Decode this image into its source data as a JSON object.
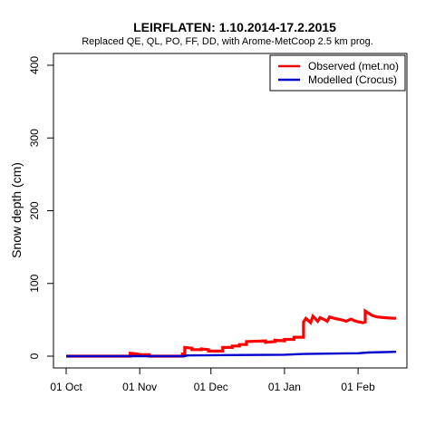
{
  "chart_data": {
    "type": "line",
    "title": "LEIRFLATEN: 1.10.2014-17.2.2015",
    "subtitle": "Replaced QE, QL, PO, FF, DD,  with Arome-MetCoop 2.5 km prog.",
    "xlabel": "",
    "ylabel": "Snow depth (cm)",
    "x_ticks": [
      "01 Oct",
      "01 Nov",
      "01 Dec",
      "01 Jan",
      "01 Feb"
    ],
    "x_tick_days": [
      0,
      31,
      61,
      92,
      123
    ],
    "xlim_days": [
      0,
      139
    ],
    "y_ticks": [
      0,
      100,
      200,
      300,
      400
    ],
    "ylim": [
      0,
      400
    ],
    "grid": false,
    "legend_position": "top-right",
    "series": [
      {
        "name": "Observed (met.no)",
        "color": "#ff0000",
        "points": [
          [
            "2014-10-01",
            0
          ],
          [
            "2014-10-28",
            0
          ],
          [
            "2014-10-28",
            4
          ],
          [
            "2014-10-31",
            3
          ],
          [
            "2014-10-31",
            2
          ],
          [
            "2014-11-05",
            2
          ],
          [
            "2014-11-05",
            0
          ],
          [
            "2014-11-19",
            0
          ],
          [
            "2014-11-19",
            3
          ],
          [
            "2014-11-20",
            3
          ],
          [
            "2014-11-20",
            12
          ],
          [
            "2014-11-23",
            11
          ],
          [
            "2014-11-23",
            9
          ],
          [
            "2014-11-27",
            9
          ],
          [
            "2014-11-27",
            10
          ],
          [
            "2014-11-30",
            9
          ],
          [
            "2014-11-30",
            7
          ],
          [
            "2014-12-06",
            7
          ],
          [
            "2014-12-06",
            12
          ],
          [
            "2014-12-10",
            12
          ],
          [
            "2014-12-10",
            14
          ],
          [
            "2014-12-13",
            14
          ],
          [
            "2014-12-13",
            16
          ],
          [
            "2014-12-16",
            16
          ],
          [
            "2014-12-16",
            20
          ],
          [
            "2014-12-24",
            21
          ],
          [
            "2014-12-24",
            19
          ],
          [
            "2014-12-28",
            20
          ],
          [
            "2014-12-28",
            22
          ],
          [
            "2015-01-01",
            21
          ],
          [
            "2015-01-01",
            23
          ],
          [
            "2015-01-05",
            23
          ],
          [
            "2015-01-05",
            26
          ],
          [
            "2015-01-09",
            26
          ],
          [
            "2015-01-09",
            47
          ],
          [
            "2015-01-10",
            52
          ],
          [
            "2015-01-12",
            46
          ],
          [
            "2015-01-13",
            55
          ],
          [
            "2015-01-15",
            48
          ],
          [
            "2015-01-16",
            53
          ],
          [
            "2015-01-18",
            50
          ],
          [
            "2015-01-19",
            48
          ],
          [
            "2015-01-20",
            54
          ],
          [
            "2015-01-22",
            52
          ],
          [
            "2015-01-25",
            50
          ],
          [
            "2015-01-27",
            48
          ],
          [
            "2015-01-29",
            51
          ],
          [
            "2015-01-31",
            48
          ],
          [
            "2015-02-03",
            46
          ],
          [
            "2015-02-04",
            47
          ],
          [
            "2015-02-04",
            62
          ],
          [
            "2015-02-05",
            60
          ],
          [
            "2015-02-07",
            56
          ],
          [
            "2015-02-09",
            54
          ],
          [
            "2015-02-12",
            53
          ],
          [
            "2015-02-17",
            52
          ]
        ]
      },
      {
        "name": "Modelled (Crocus)",
        "color": "#0000cc",
        "points": [
          [
            "2014-10-01",
            0
          ],
          [
            "2014-11-20",
            0
          ],
          [
            "2014-11-21",
            1
          ],
          [
            "2015-01-01",
            2
          ],
          [
            "2015-01-09",
            3
          ],
          [
            "2015-02-01",
            4
          ],
          [
            "2015-02-05",
            5
          ],
          [
            "2015-02-17",
            6
          ]
        ]
      }
    ]
  }
}
